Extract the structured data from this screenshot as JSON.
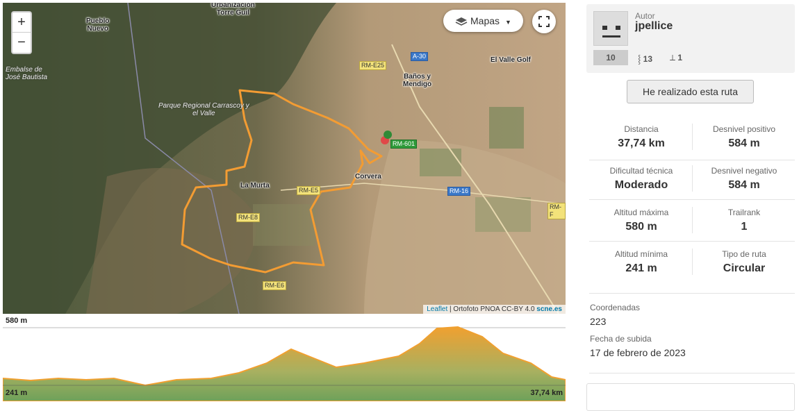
{
  "map": {
    "controls": {
      "zoom_in": "+",
      "zoom_out": "−",
      "layers": "Mapas"
    },
    "places": {
      "torre_guil": [
        "Urbanización",
        "Torre Guil"
      ],
      "pueblo_nuevo": [
        "Pueblo",
        "Nuevo"
      ],
      "embalse": [
        "Embalse de",
        "José Bautista"
      ],
      "parque": [
        "Parque Regional Carrascoy y",
        "el Valle"
      ],
      "la_murta": "La Murta",
      "corvera": "Corvera",
      "banos": [
        "Baños y",
        "Mendigo"
      ],
      "valle_golf": "El Valle Golf"
    },
    "roads": {
      "a30": "A-30",
      "rme25": "RM-E25",
      "rm601": "RM-601",
      "rme5": "RM-E5",
      "rm16": "RM-16",
      "rme8": "RM-E8",
      "rme6": "RM-E6",
      "rmf": "RM-F"
    },
    "attribution": {
      "leaflet": "Leaflet",
      "source": "| Ortofoto PNOA CC-BY 4.0",
      "link": "scne.es"
    }
  },
  "profile": {
    "max": "580 m",
    "min": "241 m",
    "distance": "37,74 km"
  },
  "author": {
    "label": "Autor",
    "name": "jpellice",
    "level": "10",
    "followers": "13",
    "routes": "1"
  },
  "action": "He realizado esta ruta",
  "stats": [
    {
      "label": "Distancia",
      "value": "37,74 km"
    },
    {
      "label": "Desnivel positivo",
      "value": "584 m"
    },
    {
      "label": "Dificultad técnica",
      "value": "Moderado"
    },
    {
      "label": "Desnivel negativo",
      "value": "584 m"
    },
    {
      "label": "Altitud máxima",
      "value": "580 m"
    },
    {
      "label": "Trailrank",
      "value": "1"
    },
    {
      "label": "Altitud mínima",
      "value": "241 m"
    },
    {
      "label": "Tipo de ruta",
      "value": "Circular"
    }
  ],
  "details": [
    {
      "label": "Coordenadas",
      "value": "223"
    },
    {
      "label": "Fecha de subida",
      "value": "17 de febrero de 2023"
    }
  ]
}
